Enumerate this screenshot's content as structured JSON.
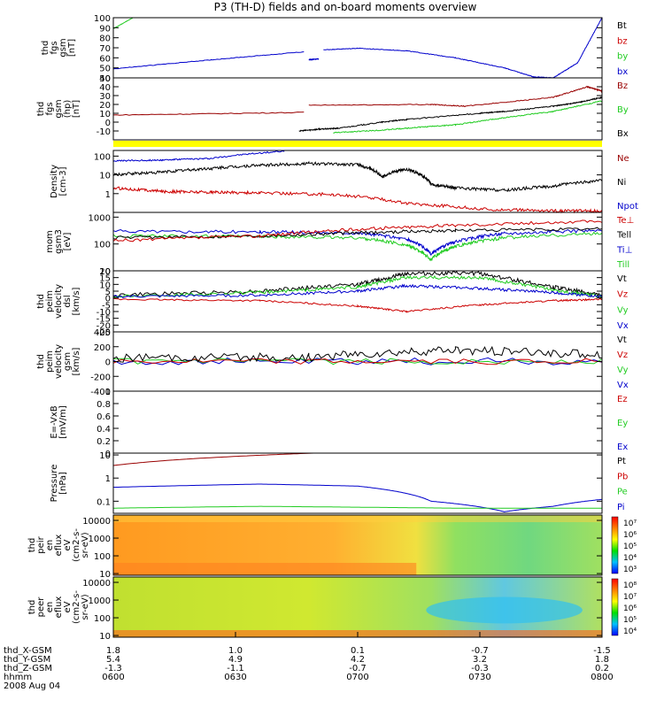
{
  "title": "P3 (TH-D) fields and on-board moments overview",
  "chart_data": [
    {
      "type": "line",
      "ylabel": [
        "thd",
        "fgs",
        "gsm",
        "[nT]"
      ],
      "ylim": [
        40,
        100
      ],
      "yticks": [
        100,
        90,
        80,
        70,
        60,
        50,
        40
      ],
      "legend": [
        {
          "label": "Bt",
          "color": "#000000"
        },
        {
          "label": "bz",
          "color": "#cc0000"
        },
        {
          "label": "by",
          "color": "#22cc22"
        },
        {
          "label": "bx",
          "color": "#0000cc"
        }
      ],
      "series": [
        {
          "color": "#22cc22",
          "noise": 0.2,
          "x": [
            0,
            0.04
          ],
          "y": [
            89,
            100
          ]
        },
        {
          "color": "#0000cc",
          "noise": 0.3,
          "x": [
            0,
            0.2,
            0.39
          ],
          "y": [
            49,
            58,
            66
          ]
        },
        {
          "color": "#0000cc",
          "noise": 0.3,
          "x": [
            0.4,
            0.42
          ],
          "y": [
            58,
            59
          ]
        },
        {
          "color": "#0000cc",
          "noise": 0.3,
          "x": [
            0.43,
            0.5,
            0.6,
            0.7,
            0.8,
            0.86,
            0.9,
            0.95,
            1.0
          ],
          "y": [
            68,
            69.5,
            67,
            60,
            50,
            41,
            40,
            55,
            100
          ]
        }
      ]
    },
    {
      "type": "line",
      "ylabel": [
        "thd",
        "fgs",
        "gsm",
        "(hp)",
        "[nT]"
      ],
      "ylim": [
        -20,
        50
      ],
      "yticks": [
        50,
        40,
        30,
        20,
        10,
        0,
        -10
      ],
      "legend": [
        {
          "label": "Bz",
          "color": "#990000"
        },
        {
          "label": "By",
          "color": "#22cc22"
        },
        {
          "label": "Bx",
          "color": "#000000"
        }
      ],
      "series": [
        {
          "color": "#990000",
          "noise": 0.5,
          "x": [
            0,
            0.39
          ],
          "y": [
            8,
            11
          ]
        },
        {
          "color": "#990000",
          "noise": 0.5,
          "x": [
            0.4,
            0.65,
            0.72,
            0.9,
            0.97,
            1.0
          ],
          "y": [
            19,
            20,
            18,
            28,
            40,
            35
          ]
        },
        {
          "color": "#000000",
          "noise": 0.6,
          "x": [
            0.38,
            0.42,
            0.46,
            0.55,
            0.6,
            0.75,
            0.8,
            0.9,
            0.95,
            1.0
          ],
          "y": [
            -10,
            -8,
            -7,
            0,
            3,
            10,
            12,
            18,
            22,
            28
          ]
        },
        {
          "color": "#22cc22",
          "noise": 0.6,
          "x": [
            0.45,
            0.55,
            0.62,
            0.7,
            0.8,
            0.9,
            1.0
          ],
          "y": [
            -12,
            -9,
            -6,
            -3,
            5,
            12,
            24
          ]
        }
      ]
    },
    {
      "type": "line",
      "ylabel": [
        "Density",
        "[cm-3]"
      ],
      "ylim": [
        0.1,
        200
      ],
      "log": true,
      "yticks": [
        100,
        10,
        1
      ],
      "legend": [
        {
          "label": "Ne",
          "color": "#990000"
        },
        {
          "label": "Ni",
          "color": "#000000"
        },
        {
          "label": "Npot",
          "color": "#0000cc"
        }
      ],
      "series": [
        {
          "color": "#0000cc",
          "noise": 0.02,
          "x": [
            0,
            0.1,
            0.2,
            0.35
          ],
          "y": [
            55,
            62,
            75,
            180
          ]
        },
        {
          "color": "#000000",
          "noise": 0.04,
          "x": [
            0,
            0.1,
            0.2,
            0.3,
            0.4,
            0.5,
            0.55,
            0.6,
            0.65,
            0.7,
            0.8,
            0.9,
            1.0
          ],
          "y": [
            10,
            14,
            22,
            32,
            40,
            35,
            8,
            20,
            3,
            2,
            1.5,
            2.5,
            5
          ]
        },
        {
          "color": "#cc0000",
          "noise": 0.04,
          "x": [
            0,
            0.1,
            0.2,
            0.3,
            0.45,
            0.6,
            0.75,
            0.9,
            1.0
          ],
          "y": [
            2,
            1.3,
            1.2,
            1.1,
            0.9,
            0.3,
            0.15,
            0.12,
            0.12
          ]
        }
      ]
    },
    {
      "type": "line",
      "ylabel": [
        "mom",
        "gsm3",
        "[eV]"
      ],
      "ylim": [
        10,
        1500
      ],
      "log": true,
      "yticks": [
        1000,
        100,
        10
      ],
      "legend": [
        {
          "label": "Te⊥",
          "color": "#cc0000"
        },
        {
          "label": "Tell",
          "color": "#000000"
        },
        {
          "label": "Ti⊥",
          "color": "#0000cc"
        },
        {
          "label": "Till",
          "color": "#22cc22"
        }
      ],
      "series": [
        {
          "color": "#0000cc",
          "noise": 0.03,
          "x": [
            0,
            0.3,
            0.5,
            0.6,
            0.65,
            0.7,
            0.8,
            1.0
          ],
          "y": [
            300,
            280,
            260,
            150,
            40,
            120,
            250,
            320
          ]
        },
        {
          "color": "#22cc22",
          "noise": 0.03,
          "x": [
            0,
            0.3,
            0.5,
            0.6,
            0.65,
            0.7,
            0.8,
            1.0
          ],
          "y": [
            200,
            190,
            170,
            90,
            25,
            80,
            170,
            250
          ]
        },
        {
          "color": "#000000",
          "noise": 0.03,
          "x": [
            0,
            0.3,
            0.5,
            0.7,
            1.0
          ],
          "y": [
            170,
            200,
            260,
            320,
            360
          ]
        },
        {
          "color": "#cc0000",
          "noise": 0.03,
          "x": [
            0,
            0.3,
            0.5,
            0.7,
            1.0
          ],
          "y": [
            130,
            200,
            350,
            500,
            700
          ]
        }
      ]
    },
    {
      "type": "line",
      "ylabel": [
        "thd",
        "peim",
        "velocity",
        "dsl",
        "[km/s]"
      ],
      "ylim": [
        -25,
        20
      ],
      "yticks": [
        20,
        15,
        10,
        5,
        0,
        -5,
        -10,
        -15,
        -20,
        -25
      ],
      "legend": [
        {
          "label": "Vt",
          "color": "#000000"
        },
        {
          "label": "Vz",
          "color": "#cc0000"
        },
        {
          "label": "Vy",
          "color": "#22cc22"
        },
        {
          "label": "Vx",
          "color": "#0000cc"
        }
      ],
      "series": [
        {
          "color": "#000000",
          "noise": 1.5,
          "x": [
            0,
            0.3,
            0.5,
            0.6,
            0.75,
            0.9,
            1.0
          ],
          "y": [
            2,
            5,
            10,
            18,
            18,
            8,
            2
          ]
        },
        {
          "color": "#22cc22",
          "noise": 1.2,
          "x": [
            0,
            0.3,
            0.5,
            0.6,
            0.75,
            0.9,
            1.0
          ],
          "y": [
            1,
            4,
            8,
            15,
            15,
            6,
            1
          ]
        },
        {
          "color": "#0000cc",
          "noise": 1.0,
          "x": [
            0,
            0.3,
            0.5,
            0.6,
            0.75,
            0.9,
            1.0
          ],
          "y": [
            1,
            2,
            5,
            9,
            7,
            4,
            1
          ]
        },
        {
          "color": "#cc0000",
          "noise": 0.6,
          "x": [
            0,
            0.3,
            0.5,
            0.6,
            0.75,
            0.9,
            1.0
          ],
          "y": [
            -1,
            -2,
            -6,
            -10,
            -5,
            -2,
            -1
          ]
        }
      ]
    },
    {
      "type": "line",
      "ylabel": [
        "thd",
        "peim",
        "velocity",
        "gsm",
        "[km/s]"
      ],
      "ylim": [
        -400,
        400
      ],
      "yticks": [
        400,
        200,
        0,
        -200,
        -400
      ],
      "legend": [
        {
          "label": "Vt",
          "color": "#000000"
        },
        {
          "label": "Vz",
          "color": "#cc0000"
        },
        {
          "label": "Vy",
          "color": "#22cc22"
        },
        {
          "label": "Vx",
          "color": "#0000cc"
        }
      ],
      "series": [
        {
          "color": "#0000cc",
          "noise": 50,
          "x": [
            0,
            1.0
          ],
          "y": [
            0,
            0
          ]
        },
        {
          "color": "#22cc22",
          "noise": 40,
          "x": [
            0,
            1.0
          ],
          "y": [
            0,
            0
          ]
        },
        {
          "color": "#cc0000",
          "noise": 40,
          "x": [
            0,
            1.0
          ],
          "y": [
            0,
            0
          ]
        },
        {
          "color": "#000000",
          "noise": 60,
          "x": [
            0,
            0.4,
            0.7,
            1.0
          ],
          "y": [
            40,
            60,
            150,
            100
          ]
        }
      ]
    },
    {
      "type": "line",
      "ylabel": [
        "E=-VxB",
        "[mV/m]"
      ],
      "ylim": [
        0,
        1
      ],
      "yticks": [
        1.0,
        0.8,
        0.6,
        0.4,
        0.2,
        0.0
      ],
      "legend": [
        {
          "label": "Ez",
          "color": "#cc0000"
        },
        {
          "label": "Ey",
          "color": "#22cc22"
        },
        {
          "label": "Ex",
          "color": "#0000cc"
        }
      ],
      "series": []
    },
    {
      "type": "line",
      "ylabel": [
        "Pressure",
        "[nPa]"
      ],
      "ylim": [
        0.03,
        12
      ],
      "log": true,
      "yticks": [
        10.0,
        1.0,
        0.1
      ],
      "legend": [
        {
          "label": "Pt",
          "color": "#000000"
        },
        {
          "label": "Pb",
          "color": "#cc0000"
        },
        {
          "label": "Pe",
          "color": "#22cc22"
        },
        {
          "label": "Pi",
          "color": "#0000cc"
        }
      ],
      "series": [
        {
          "color": "#990000",
          "noise": 0,
          "x": [
            0,
            0.41
          ],
          "y": [
            3.5,
            12
          ]
        },
        {
          "color": "#0000cc",
          "noise": 0,
          "x": [
            0,
            0.3,
            0.5,
            0.65,
            0.8,
            0.9,
            1.0
          ],
          "y": [
            0.4,
            0.55,
            0.45,
            0.1,
            0.035,
            0.06,
            0.12
          ]
        },
        {
          "color": "#22cc22",
          "noise": 0,
          "x": [
            0,
            0.3,
            0.5,
            0.7,
            1.0
          ],
          "y": [
            0.05,
            0.06,
            0.055,
            0.05,
            0.05
          ]
        }
      ]
    },
    {
      "type": "heatmap",
      "ylabel": [
        "thd",
        "peir",
        "en",
        "eflux",
        "eV",
        "(cm2-s-",
        "sr-eV)"
      ],
      "ylim": [
        8,
        20000
      ],
      "log": true,
      "yticks": [
        10000,
        1000,
        100,
        10
      ],
      "colorbar": {
        "ticks": [
          "10⁷",
          "10⁶",
          "10⁵",
          "10⁴",
          "10³"
        ]
      }
    },
    {
      "type": "heatmap",
      "ylabel": [
        "thd",
        "peer",
        "en",
        "eflux",
        "eV",
        "(cm2-s-",
        "sr-eV)"
      ],
      "ylim": [
        8,
        20000
      ],
      "log": true,
      "yticks": [
        10000,
        1000,
        100,
        10
      ],
      "colorbar": {
        "ticks": [
          "10⁸",
          "10⁷",
          "10⁶",
          "10⁵",
          "10⁴"
        ]
      }
    }
  ],
  "xaxis": {
    "rows": [
      {
        "label": "thd_X-GSM",
        "values": [
          "1.8",
          "1.0",
          "0.1",
          "-0.7",
          "-1.5"
        ]
      },
      {
        "label": "thd_Y-GSM",
        "values": [
          "5.4",
          "4.9",
          "4.2",
          "3.2",
          "1.8"
        ]
      },
      {
        "label": "thd_Z-GSM",
        "values": [
          "-1.3",
          "-1.1",
          "-0.7",
          "-0.3",
          "0.2"
        ]
      },
      {
        "label": "hhmm",
        "values": [
          "0600",
          "0630",
          "0700",
          "0730",
          "0800"
        ]
      }
    ],
    "date": "2008 Aug 04"
  }
}
